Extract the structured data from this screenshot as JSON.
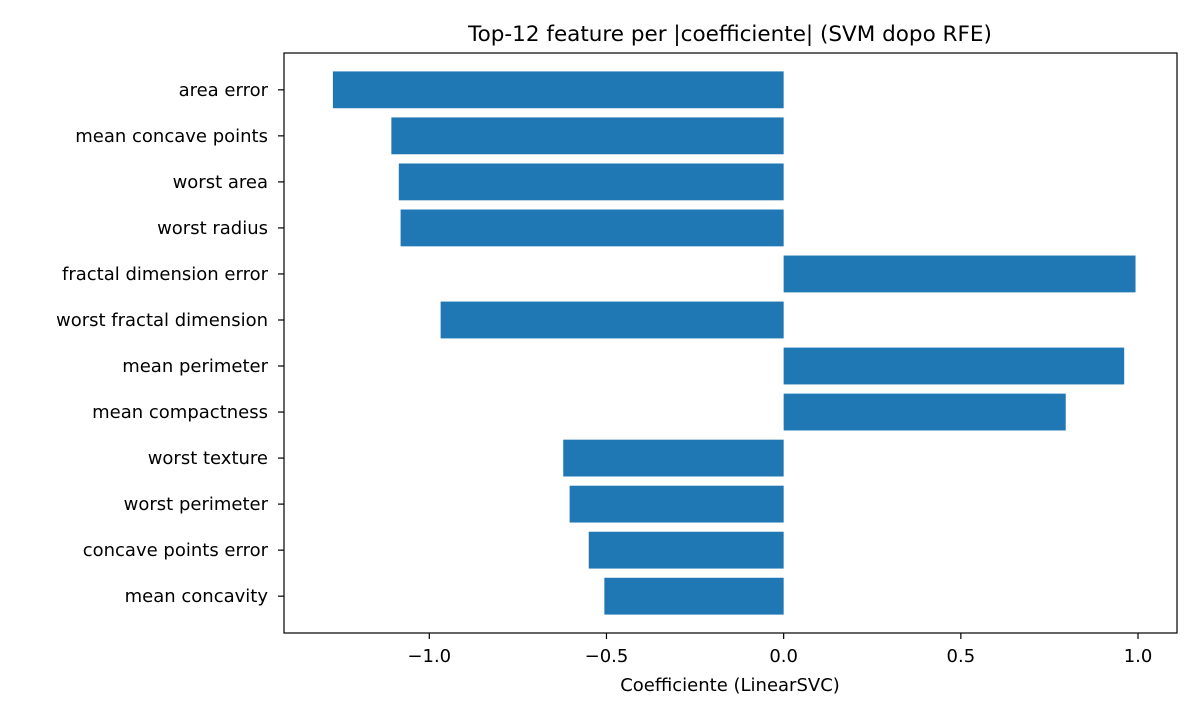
{
  "chart_data": {
    "type": "bar",
    "orientation": "horizontal",
    "title": "Top-12 feature per |coefficiente| (SVM dopo RFE)",
    "xlabel": "Coefficiente (LinearSVC)",
    "ylabel": "",
    "xlim": [
      -1.41,
      1.11
    ],
    "x_ticks": [
      -1.0,
      -0.5,
      0.0,
      0.5,
      1.0
    ],
    "x_tick_labels": [
      "−1.0",
      "−0.5",
      "0.0",
      "0.5",
      "1.0"
    ],
    "bar_color": "#1f77b4",
    "grid": false,
    "categories": [
      "area error",
      "mean concave points",
      "worst area",
      "worst radius",
      "fractal dimension error",
      "worst fractal dimension",
      "mean perimeter",
      "mean compactness",
      "worst texture",
      "worst perimeter",
      "concave points error",
      "mean concavity"
    ],
    "values": [
      -1.272,
      -1.107,
      -1.086,
      -1.081,
      0.993,
      -0.968,
      0.961,
      0.796,
      -0.622,
      -0.604,
      -0.55,
      -0.506
    ]
  }
}
